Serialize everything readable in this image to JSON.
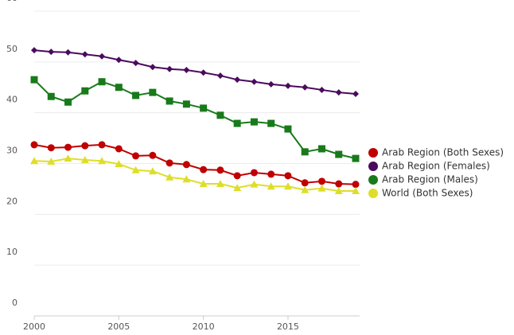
{
  "chart_data": {
    "type": "line",
    "x": [
      2000,
      2001,
      2002,
      2003,
      2004,
      2005,
      2006,
      2007,
      2008,
      2009,
      2010,
      2011,
      2012,
      2013,
      2014,
      2015,
      2016,
      2017,
      2018,
      2019
    ],
    "xlim": [
      2000,
      2019
    ],
    "xticks": [
      2000,
      2005,
      2010,
      2015
    ],
    "ylim": [
      0,
      60
    ],
    "yticks": [
      0,
      10,
      20,
      30,
      40,
      50,
      60
    ],
    "grid": true,
    "legend": "right",
    "series": [
      {
        "name": "Arab Region (Both Sexes)",
        "color": "#c00000",
        "marker": "circle",
        "values": [
          33.7,
          33.1,
          33.2,
          33.5,
          33.7,
          32.9,
          31.5,
          31.6,
          30.1,
          29.8,
          28.8,
          28.7,
          27.6,
          28.2,
          27.9,
          27.6,
          26.2,
          26.5,
          26.0,
          25.9
        ]
      },
      {
        "name": "Arab Region (Females)",
        "color": "#4b0a5e",
        "marker": "diamond",
        "values": [
          52.3,
          52.0,
          51.9,
          51.5,
          51.1,
          50.4,
          49.8,
          49.0,
          48.6,
          48.4,
          47.9,
          47.3,
          46.5,
          46.1,
          45.6,
          45.3,
          45.0,
          44.5,
          44.0,
          43.7
        ]
      },
      {
        "name": "Arab Region (Males)",
        "color": "#187a1a",
        "marker": "square",
        "values": [
          46.5,
          43.2,
          42.1,
          44.3,
          46.1,
          45.0,
          43.4,
          44.0,
          42.3,
          41.7,
          40.9,
          39.5,
          37.9,
          38.2,
          37.9,
          36.8,
          32.3,
          32.9,
          31.8,
          31.0
        ]
      },
      {
        "name": "World (Both Sexes)",
        "color": "#dede2a",
        "marker": "triangle",
        "values": [
          30.5,
          30.4,
          31.0,
          30.7,
          30.5,
          29.9,
          28.7,
          28.5,
          27.3,
          26.9,
          26.0,
          26.0,
          25.2,
          25.9,
          25.5,
          25.5,
          24.8,
          25.1,
          24.6,
          24.6
        ]
      }
    ]
  }
}
